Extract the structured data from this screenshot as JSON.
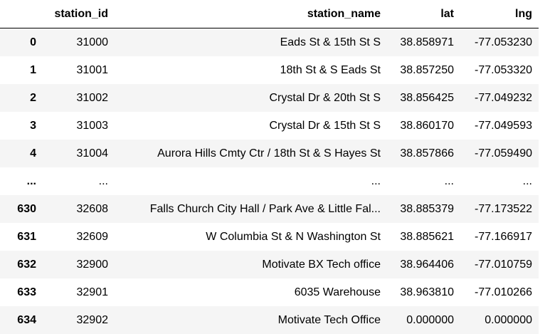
{
  "table": {
    "columns": [
      "",
      "station_id",
      "station_name",
      "lat",
      "lng"
    ],
    "rows": [
      {
        "index": "0",
        "station_id": "31000",
        "station_name": "Eads St & 15th St S",
        "lat": "38.858971",
        "lng": "-77.053230"
      },
      {
        "index": "1",
        "station_id": "31001",
        "station_name": "18th St & S Eads St",
        "lat": "38.857250",
        "lng": "-77.053320"
      },
      {
        "index": "2",
        "station_id": "31002",
        "station_name": "Crystal Dr & 20th St S",
        "lat": "38.856425",
        "lng": "-77.049232"
      },
      {
        "index": "3",
        "station_id": "31003",
        "station_name": "Crystal Dr & 15th St S",
        "lat": "38.860170",
        "lng": "-77.049593"
      },
      {
        "index": "4",
        "station_id": "31004",
        "station_name": "Aurora Hills Cmty Ctr / 18th St & S Hayes St",
        "lat": "38.857866",
        "lng": "-77.059490"
      },
      {
        "index": "...",
        "station_id": "...",
        "station_name": "...",
        "lat": "...",
        "lng": "..."
      },
      {
        "index": "630",
        "station_id": "32608",
        "station_name": "Falls Church City Hall / Park Ave & Little Fal...",
        "lat": "38.885379",
        "lng": "-77.173522"
      },
      {
        "index": "631",
        "station_id": "32609",
        "station_name": "W Columbia St & N Washington St",
        "lat": "38.885621",
        "lng": "-77.166917"
      },
      {
        "index": "632",
        "station_id": "32900",
        "station_name": "Motivate BX Tech office",
        "lat": "38.964406",
        "lng": "-77.010759"
      },
      {
        "index": "633",
        "station_id": "32901",
        "station_name": "6035 Warehouse",
        "lat": "38.963810",
        "lng": "-77.010266"
      },
      {
        "index": "634",
        "station_id": "32902",
        "station_name": "Motivate Tech Office",
        "lat": "0.000000",
        "lng": "0.000000"
      }
    ]
  }
}
